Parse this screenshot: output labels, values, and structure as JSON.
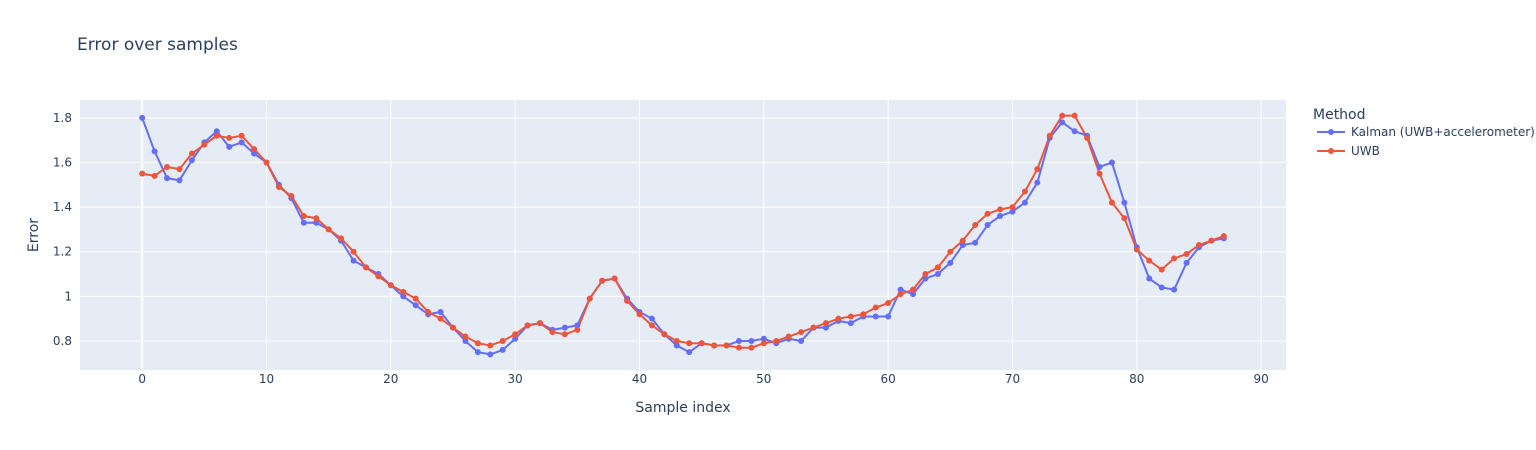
{
  "chart_data": {
    "type": "line",
    "title": "Error over samples",
    "xlabel": "Sample index",
    "ylabel": "Error",
    "xlim": [
      -5,
      92
    ],
    "ylim": [
      0.67,
      1.88
    ],
    "xticks": [
      0,
      10,
      20,
      30,
      40,
      50,
      60,
      70,
      80,
      90
    ],
    "xtick_labels": [
      "0",
      "10",
      "20",
      "30",
      "40",
      "50",
      "60",
      "70",
      "80",
      "90"
    ],
    "yticks": [
      0.8,
      1.0,
      1.2,
      1.4,
      1.6,
      1.8
    ],
    "ytick_labels": [
      "0.8",
      "1",
      "1.2",
      "1.4",
      "1.6",
      "1.8"
    ],
    "grid": true,
    "legend": {
      "title": "Method",
      "placement": "right"
    },
    "series": [
      {
        "name": "Kalman (UWB+accelerometer)",
        "color": "#636efa",
        "values": [
          1.8,
          1.65,
          1.53,
          1.52,
          1.61,
          1.69,
          1.74,
          1.67,
          1.69,
          1.64,
          1.6,
          1.5,
          1.44,
          1.33,
          1.33,
          1.3,
          1.25,
          1.16,
          1.13,
          1.1,
          1.05,
          1.0,
          0.96,
          0.92,
          0.93,
          0.86,
          0.8,
          0.75,
          0.74,
          0.76,
          0.81,
          0.87,
          0.88,
          0.85,
          0.86,
          0.87,
          0.99,
          1.07,
          1.08,
          0.99,
          0.93,
          0.9,
          0.83,
          0.78,
          0.75,
          0.79,
          0.78,
          0.78,
          0.8,
          0.8,
          0.81,
          0.79,
          0.81,
          0.8,
          0.86,
          0.86,
          0.89,
          0.88,
          0.91,
          0.91,
          0.91,
          1.03,
          1.01,
          1.08,
          1.1,
          1.15,
          1.23,
          1.24,
          1.32,
          1.36,
          1.38,
          1.42,
          1.51,
          1.71,
          1.78,
          1.74,
          1.72,
          1.58,
          1.6,
          1.42,
          1.22,
          1.08,
          1.04,
          1.03,
          1.15,
          1.22,
          1.25,
          1.26
        ]
      },
      {
        "name": "UWB",
        "color": "#ef553b",
        "values": [
          1.55,
          1.54,
          1.58,
          1.57,
          1.64,
          1.68,
          1.72,
          1.71,
          1.72,
          1.66,
          1.6,
          1.49,
          1.45,
          1.36,
          1.35,
          1.3,
          1.26,
          1.2,
          1.13,
          1.09,
          1.05,
          1.02,
          0.99,
          0.93,
          0.9,
          0.86,
          0.82,
          0.79,
          0.78,
          0.8,
          0.83,
          0.87,
          0.88,
          0.84,
          0.83,
          0.85,
          0.99,
          1.07,
          1.08,
          0.98,
          0.92,
          0.87,
          0.83,
          0.8,
          0.79,
          0.79,
          0.78,
          0.78,
          0.77,
          0.77,
          0.79,
          0.8,
          0.82,
          0.84,
          0.86,
          0.88,
          0.9,
          0.91,
          0.92,
          0.95,
          0.97,
          1.01,
          1.03,
          1.1,
          1.13,
          1.2,
          1.25,
          1.32,
          1.37,
          1.39,
          1.4,
          1.47,
          1.57,
          1.72,
          1.81,
          1.81,
          1.71,
          1.55,
          1.42,
          1.35,
          1.21,
          1.16,
          1.12,
          1.17,
          1.19,
          1.23,
          1.25,
          1.27
        ]
      }
    ]
  },
  "style": {
    "plot_bg": "#e5ecf6",
    "grid_color": "#ffffff",
    "text_color": "#2a3f5f"
  }
}
